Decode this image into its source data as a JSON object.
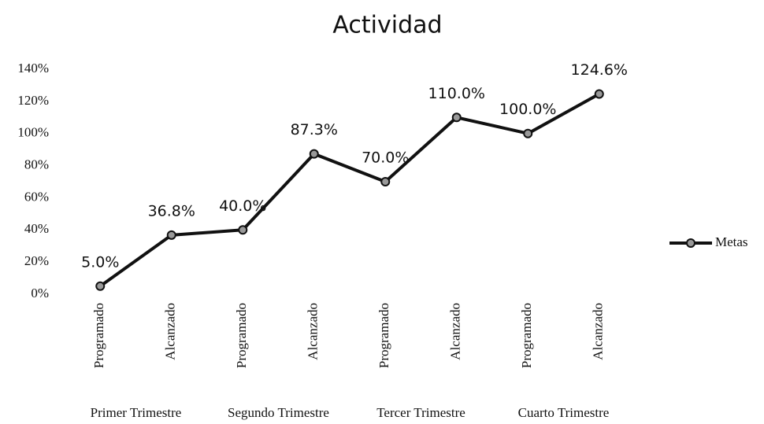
{
  "chart_data": {
    "type": "line",
    "title": "Actividad",
    "categories": [
      "Programado",
      "Alcanzado",
      "Programado",
      "Alcanzado",
      "Programado",
      "Alcanzado",
      "Programado",
      "Alcanzado"
    ],
    "groups": [
      "Primer Trimestre",
      "Segundo Trimestre",
      "Tercer Trimestre",
      "Cuarto Trimestre"
    ],
    "series": [
      {
        "name": "Metas",
        "color": "#111111",
        "values": [
          5.0,
          36.8,
          40.0,
          87.3,
          70.0,
          110.0,
          100.0,
          124.6
        ],
        "value_labels": [
          "5.0%",
          "36.8%",
          "40.0%",
          "87.3%",
          "70.0%",
          "110.0%",
          "100.0%",
          "124.6%"
        ]
      }
    ],
    "ylim": [
      0,
      140
    ],
    "yticks": [
      {
        "value": 0,
        "label": "0%"
      },
      {
        "value": 20,
        "label": "20%"
      },
      {
        "value": 40,
        "label": "40%"
      },
      {
        "value": 60,
        "label": "60%"
      },
      {
        "value": 80,
        "label": "80%"
      },
      {
        "value": 100,
        "label": "100%"
      },
      {
        "value": 120,
        "label": "120%"
      },
      {
        "value": 140,
        "label": "140%"
      }
    ],
    "legend": "right",
    "grid": false
  }
}
